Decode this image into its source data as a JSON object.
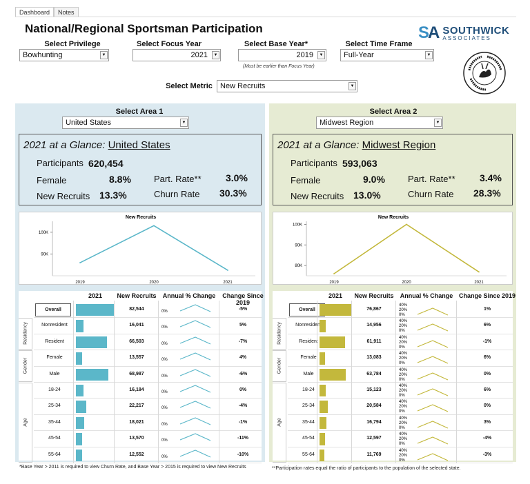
{
  "tabs": [
    "Dashboard",
    "Notes"
  ],
  "title": "National/Regional Sportsman Participation",
  "logo": {
    "mark_s": "S",
    "mark_a": "A",
    "name": "SOUTHWICK",
    "sub": "ASSOCIATES",
    "seal_text": "WILDLIFE & SPORT FISH RESTORATION"
  },
  "selectors": {
    "privilege": {
      "label": "Select Privilege",
      "value": "Bowhunting"
    },
    "focus_year": {
      "label": "Select Focus Year",
      "value": "2021"
    },
    "base_year": {
      "label": "Select Base Year*",
      "value": "2019",
      "note": "(Must be earlier than Focus Year)"
    },
    "time_frame": {
      "label": "Select Time Frame",
      "value": "Full-Year"
    },
    "metric": {
      "label": "Select Metric",
      "value": "New Recruits"
    }
  },
  "area1": {
    "label": "Select Area 1",
    "value": "United States",
    "glance_prefix": "2021 at a Glance:",
    "glance_name": "United States",
    "participants_label": "Participants",
    "participants": "620,454",
    "female_label": "Female",
    "female": "8.8%",
    "part_rate_label": "Part. Rate**",
    "part_rate": "3.0%",
    "new_recruits_label": "New Recruits",
    "new_recruits": "13.3%",
    "churn_label": "Churn Rate",
    "churn": "30.3%",
    "chart_title": "New Recruits",
    "table_headers": {
      "year": "2021",
      "metric": "New Recruits",
      "annual": "Annual % Change",
      "since": "Change Since 2019"
    },
    "groups": {
      "residency": "Residency",
      "gender": "Gender",
      "age": "Age"
    },
    "rows": [
      {
        "label": "Overall",
        "value": "82,544",
        "since": "-5%",
        "bar": 1.0
      },
      {
        "label": "Nonresident",
        "value": "16,041",
        "since": "5%",
        "bar": 0.194
      },
      {
        "label": "Resident",
        "value": "66,503",
        "since": "-7%",
        "bar": 0.806
      },
      {
        "label": "Female",
        "value": "13,557",
        "since": "4%",
        "bar": 0.164
      },
      {
        "label": "Male",
        "value": "68,987",
        "since": "-6%",
        "bar": 0.836
      },
      {
        "label": "18-24",
        "value": "16,184",
        "since": "0%",
        "bar": 0.196
      },
      {
        "label": "25-34",
        "value": "22,217",
        "since": "-4%",
        "bar": 0.269
      },
      {
        "label": "35-44",
        "value": "18,021",
        "since": "-1%",
        "bar": 0.218
      },
      {
        "label": "45-54",
        "value": "13,570",
        "since": "-11%",
        "bar": 0.164
      },
      {
        "label": "55-64",
        "value": "12,552",
        "since": "-10%",
        "bar": 0.152
      }
    ],
    "spark_label": "0%",
    "color": "#5bb7c9"
  },
  "area2": {
    "label": "Select Area 2",
    "value": "Midwest Region",
    "glance_prefix": "2021 at a Glance:",
    "glance_name": "Midwest Region",
    "participants_label": "Participants",
    "participants": "593,063",
    "female_label": "Female",
    "female": "9.0%",
    "part_rate_label": "Part. Rate**",
    "part_rate": "3.4%",
    "new_recruits_label": "New Recruits",
    "new_recruits": "13.0%",
    "churn_label": "Churn Rate",
    "churn": "28.3%",
    "chart_title": "New Recruits",
    "table_headers": {
      "year": "2021",
      "metric": "New Recruits",
      "annual": "Annual % Change",
      "since": "Change Since 2019"
    },
    "groups": {
      "residency": "Residency",
      "gender": "Gender",
      "age": "Age"
    },
    "rows": [
      {
        "label": "Overall",
        "value": "76,867",
        "since": "1%",
        "bar": 1.0
      },
      {
        "label": "Nonresident",
        "value": "14,956",
        "since": "6%",
        "bar": 0.195
      },
      {
        "label": "Resident",
        "value": "61,911",
        "since": "-1%",
        "bar": 0.805
      },
      {
        "label": "Female",
        "value": "13,083",
        "since": "6%",
        "bar": 0.17
      },
      {
        "label": "Male",
        "value": "63,784",
        "since": "0%",
        "bar": 0.83
      },
      {
        "label": "18-24",
        "value": "15,123",
        "since": "6%",
        "bar": 0.197
      },
      {
        "label": "25-34",
        "value": "20,584",
        "since": "0%",
        "bar": 0.268
      },
      {
        "label": "35-44",
        "value": "16,794",
        "since": "3%",
        "bar": 0.218
      },
      {
        "label": "45-54",
        "value": "12,597",
        "since": "-4%",
        "bar": 0.164
      },
      {
        "label": "55-64",
        "value": "11,769",
        "since": "-3%",
        "bar": 0.153
      }
    ],
    "spark_labels": [
      "40%",
      "20%",
      "0%"
    ],
    "color": "#c3b83c"
  },
  "footnotes": {
    "left": "*Base Year > 2011  is required to view Churn Rate, and Base Year > 2015 is required to view New Recruits",
    "right": "**Participation rates equal the ratio of participants to the population of the selected state."
  },
  "chart_data": [
    {
      "type": "line",
      "title": "New Recruits",
      "x": [
        "2019",
        "2020",
        "2021"
      ],
      "series": [
        {
          "values": [
            86000,
            103000,
            82544
          ]
        }
      ],
      "yticks": [
        "90K",
        "100K"
      ],
      "ylim": [
        80000,
        105000
      ],
      "color": "#5bb7c9"
    },
    {
      "type": "line",
      "title": "New Recruits",
      "x": [
        "2019",
        "2020",
        "2021"
      ],
      "series": [
        {
          "values": [
            76000,
            100000,
            76867
          ]
        }
      ],
      "yticks": [
        "80K",
        "90K",
        "100K"
      ],
      "ylim": [
        75000,
        101500
      ],
      "color": "#c3b83c"
    }
  ]
}
